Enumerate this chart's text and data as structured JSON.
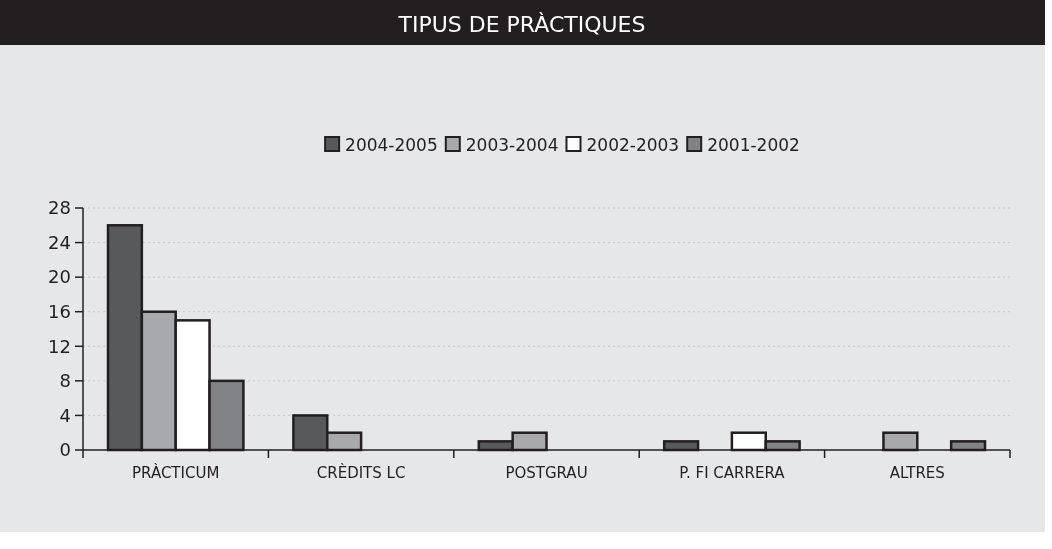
{
  "chart_data": {
    "type": "bar",
    "title": "TIPUS DE PRÀCTIQUES",
    "categories": [
      "PRÀCTICUM",
      "CRÈDITS LC",
      "POSTGRAU",
      "P. FI CARRERA",
      "ALTRES"
    ],
    "series": [
      {
        "name": "2004-2005",
        "color": "#58595b",
        "values": [
          26,
          4,
          1,
          1,
          0
        ]
      },
      {
        "name": "2003-2004",
        "color": "#a7a9ac",
        "values": [
          16,
          2,
          2,
          0,
          2
        ]
      },
      {
        "name": "2002-2003",
        "color": "#ffffff",
        "values": [
          15,
          0,
          0,
          2,
          0
        ]
      },
      {
        "name": "2001-2002",
        "color": "#808285",
        "values": [
          8,
          0,
          0,
          1,
          1
        ]
      }
    ],
    "ylim": [
      0,
      28
    ],
    "yticks": [
      0,
      4,
      8,
      12,
      16,
      20,
      24,
      28
    ],
    "grid": "y",
    "legend": "top"
  }
}
